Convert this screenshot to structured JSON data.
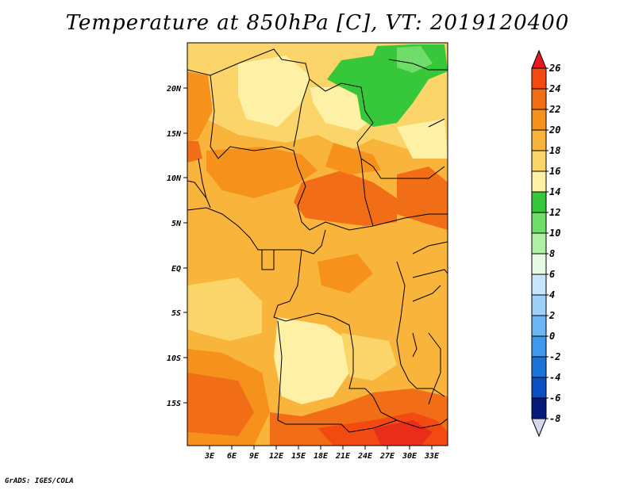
{
  "title": "Temperature at 850hPa [C], VT: 2019120400",
  "credit": "GrADS: IGES/COLA",
  "axes": {
    "lat_labels": [
      "20N",
      "15N",
      "10N",
      "5N",
      "EQ",
      "5S",
      "10S",
      "15S"
    ],
    "lon_labels": [
      "3E",
      "6E",
      "9E",
      "12E",
      "15E",
      "18E",
      "21E",
      "24E",
      "27E",
      "30E",
      "33E"
    ]
  },
  "colorbar": {
    "labels": [
      "26",
      "24",
      "22",
      "20",
      "18",
      "16",
      "14",
      "12",
      "10",
      "8",
      "6",
      "4",
      "2",
      "0",
      "-2",
      "-4",
      "-6",
      "-8"
    ],
    "colors": [
      "#e41a1c",
      "#f34a12",
      "#f26e16",
      "#f6921c",
      "#f9b43b",
      "#fcd56a",
      "#fef0a4",
      "#37c73a",
      "#70dd6a",
      "#b1efa6",
      "#e7fbe4",
      "#c7e6fb",
      "#9ed0f8",
      "#6db6f3",
      "#3e98ec",
      "#1b72d9",
      "#0c4fc2",
      "#061a7a",
      "#d6d6f2"
    ]
  },
  "map": {
    "region": "Central Africa",
    "colors": {
      "t14": "#fef0a4",
      "t16": "#fcd56a",
      "t18": "#f9b43b",
      "t20": "#f6921c",
      "t22": "#f26e16",
      "t24": "#f34a12",
      "t12": "#37c73a"
    }
  }
}
